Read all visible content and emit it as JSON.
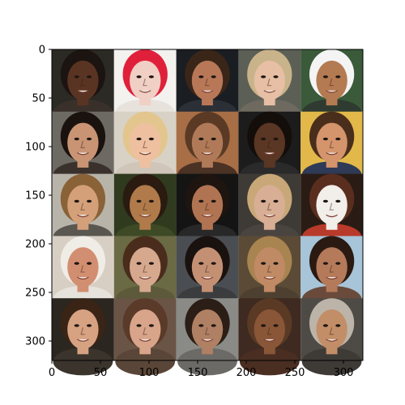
{
  "chart_data": {
    "type": "image",
    "grid_rows": 5,
    "grid_cols": 5,
    "xlim": [
      0,
      320
    ],
    "ylim": [
      320,
      0
    ],
    "x_ticks": [
      0,
      50,
      100,
      150,
      200,
      250,
      300
    ],
    "y_ticks": [
      0,
      50,
      100,
      150,
      200,
      250,
      300
    ],
    "x_tick_labels": [
      "0",
      "50",
      "100",
      "150",
      "200",
      "250",
      "300"
    ],
    "y_tick_labels": [
      "0",
      "50",
      "100",
      "150",
      "200",
      "250",
      "300"
    ],
    "grid": false,
    "tiles": [
      {
        "name": "face-tile",
        "bg": "#2b2a24",
        "skin": "#5a3423",
        "hair": "#1c1410",
        "shirt": "#3a302a"
      },
      {
        "name": "face-tile",
        "bg": "#f4f2ef",
        "skin": "#f0cfc4",
        "hair": "#e0203a",
        "shirt": "#e8e2dc"
      },
      {
        "name": "face-tile",
        "bg": "#1a1d22",
        "skin": "#b87858",
        "hair": "#3a2618",
        "shirt": "#2b2f36"
      },
      {
        "name": "face-tile",
        "bg": "#5c5f55",
        "skin": "#e6bfa4",
        "hair": "#c9b38a",
        "shirt": "#6e6a60"
      },
      {
        "name": "face-tile",
        "bg": "#3a5a3a",
        "skin": "#b47a52",
        "hair": "#f4f4f4",
        "shirt": "#2f3a30"
      },
      {
        "name": "face-tile",
        "bg": "#6c6a62",
        "skin": "#c89474",
        "hair": "#1a120e",
        "shirt": "#3a302c"
      },
      {
        "name": "face-tile",
        "bg": "#d8d2c6",
        "skin": "#eec0a0",
        "hair": "#e2c68e",
        "shirt": "#cfc5b8"
      },
      {
        "name": "face-tile",
        "bg": "#a86e46",
        "skin": "#b07a58",
        "hair": "#5a3a24",
        "shirt": "#4a3224"
      },
      {
        "name": "face-tile",
        "bg": "#1c1c1c",
        "skin": "#5a3624",
        "hair": "#140e0a",
        "shirt": "#2a2a2a"
      },
      {
        "name": "face-tile",
        "bg": "#e2b84a",
        "skin": "#d4946c",
        "hair": "#4a2e1c",
        "shirt": "#2e3a56"
      },
      {
        "name": "face-tile",
        "bg": "#b8b4aa",
        "skin": "#d4a07a",
        "hair": "#8a6238",
        "shirt": "#5a5650"
      },
      {
        "name": "face-tile",
        "bg": "#2f3a1e",
        "skin": "#b07a4a",
        "hair": "#2a1a10",
        "shirt": "#3e4a26"
      },
      {
        "name": "face-tile",
        "bg": "#141414",
        "skin": "#b07452",
        "hair": "#1e1410",
        "shirt": "#282828"
      },
      {
        "name": "face-tile",
        "bg": "#3e3a36",
        "skin": "#d8ae94",
        "hair": "#c8a878",
        "shirt": "#4a4440"
      },
      {
        "name": "face-tile",
        "bg": "#2a1c14",
        "skin": "#f2eeea",
        "hair": "#5a2e1e",
        "shirt": "#b83a2a"
      },
      {
        "name": "face-tile",
        "bg": "#d8cfc4",
        "skin": "#d28e70",
        "hair": "#f0ece6",
        "shirt": "#e6e2dc"
      },
      {
        "name": "face-tile",
        "bg": "#6a6a44",
        "skin": "#d6a88e",
        "hair": "#4a2c1c",
        "shirt": "#5c5a3a"
      },
      {
        "name": "face-tile",
        "bg": "#4a4e52",
        "skin": "#c49074",
        "hair": "#1a120e",
        "shirt": "#3a3c3e"
      },
      {
        "name": "face-tile",
        "bg": "#5a4a36",
        "skin": "#c08a64",
        "hair": "#a88450",
        "shirt": "#4e4030"
      },
      {
        "name": "face-tile",
        "bg": "#a8c4d8",
        "skin": "#b47a5a",
        "hair": "#2a1a12",
        "shirt": "#6a4a3a"
      },
      {
        "name": "face-tile",
        "bg": "#2c2620",
        "skin": "#d6a282",
        "hair": "#3a2416",
        "shirt": "#3a342c"
      },
      {
        "name": "face-tile",
        "bg": "#6a5446",
        "skin": "#d8a48a",
        "hair": "#5a3a28",
        "shirt": "#5a4638"
      },
      {
        "name": "face-tile",
        "bg": "#8a8a86",
        "skin": "#b08064",
        "hair": "#2a1e16",
        "shirt": "#6c6a66"
      },
      {
        "name": "face-tile",
        "bg": "#3e2a20",
        "skin": "#8a5638",
        "hair": "#5a3a24",
        "shirt": "#4a2e22"
      },
      {
        "name": "face-tile",
        "bg": "#4e4a46",
        "skin": "#c28e68",
        "hair": "#bcb4a8",
        "shirt": "#3e3a36"
      }
    ]
  }
}
